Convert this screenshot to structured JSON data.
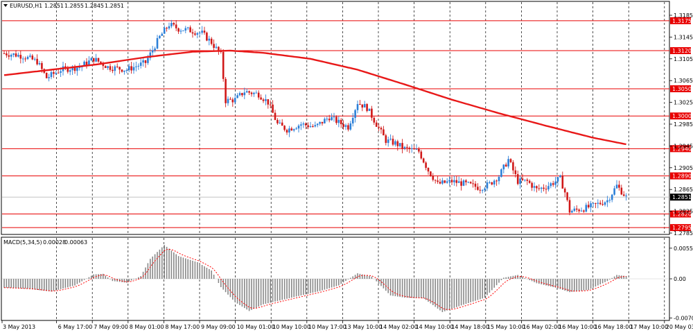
{
  "window": {
    "symbol_timeframe": "EURUSD,H1",
    "ohlc": [
      "1.2851",
      "1.2855",
      "1.2845",
      "1.2851"
    ]
  },
  "colors": {
    "bull": "#2b7fd8",
    "bear": "#d01818",
    "ma": "#e81818",
    "level": "#e80000",
    "grid": "#000000",
    "hist": "#888888",
    "signal": "#ff0000",
    "price_badge": "#000000"
  },
  "chart_data": [
    {
      "type": "candlestick",
      "title": "EURUSD,H1",
      "ylim": [
        1.2785,
        1.3185
      ],
      "y_ticks": [
        "1.3185",
        "1.3145",
        "1.3105",
        "1.3065",
        "1.3025",
        "1.2985",
        "1.2945",
        "1.2905",
        "1.2865",
        "1.2825",
        "1.2785"
      ],
      "x_ticks": [
        "3 May 2013",
        "6 May 17:00",
        "7 May 09:00",
        "8 May 01:00",
        "8 May 17:00",
        "9 May 09:00",
        "10 May 01:00",
        "10 May 10:00",
        "10 May 17:00",
        "13 May 10:00",
        "14 May 02:00",
        "14 May 10:00",
        "14 May 18:00",
        "15 May 10:00",
        "16 May 02:00",
        "16 May 10:00",
        "16 May 18:00",
        "17 May 10:00",
        "20 May 03:00"
      ],
      "levels": [
        "1.3175",
        "1.3120",
        "1.3050",
        "1.3000",
        "1.2940",
        "1.2890",
        "1.2820",
        "1.2795"
      ],
      "current_price": "1.2851",
      "close_path": [
        [
          0,
          1.3115
        ],
        [
          4,
          1.3113
        ],
        [
          8,
          1.311
        ],
        [
          14,
          1.31
        ],
        [
          18,
          1.307
        ],
        [
          24,
          1.3085
        ],
        [
          32,
          1.309
        ],
        [
          38,
          1.3105
        ],
        [
          44,
          1.309
        ],
        [
          52,
          1.3085
        ],
        [
          60,
          1.3098
        ],
        [
          66,
          1.3145
        ],
        [
          70,
          1.3168
        ],
        [
          74,
          1.316
        ],
        [
          78,
          1.3158
        ],
        [
          84,
          1.3152
        ],
        [
          88,
          1.3135
        ],
        [
          92,
          1.3112
        ],
        [
          94,
          1.3028
        ],
        [
          98,
          1.303
        ],
        [
          102,
          1.3045
        ],
        [
          108,
          1.304
        ],
        [
          112,
          1.3025
        ],
        [
          116,
          1.2985
        ],
        [
          120,
          1.2975
        ],
        [
          126,
          1.2985
        ],
        [
          132,
          1.298
        ],
        [
          138,
          1.2998
        ],
        [
          142,
          1.2988
        ],
        [
          146,
          1.298
        ],
        [
          150,
          1.3025
        ],
        [
          154,
          1.3015
        ],
        [
          158,
          1.2985
        ],
        [
          162,
          1.2955
        ],
        [
          166,
          1.295
        ],
        [
          170,
          1.294
        ],
        [
          176,
          1.2935
        ],
        [
          180,
          1.29
        ],
        [
          184,
          1.2875
        ],
        [
          190,
          1.288
        ],
        [
          196,
          1.2875
        ],
        [
          202,
          1.2868
        ],
        [
          206,
          1.2875
        ],
        [
          210,
          1.289
        ],
        [
          214,
          1.292
        ],
        [
          218,
          1.288
        ],
        [
          222,
          1.288
        ],
        [
          226,
          1.2865
        ],
        [
          230,
          1.287
        ],
        [
          236,
          1.2885
        ],
        [
          238,
          1.286
        ],
        [
          240,
          1.2825
        ],
        [
          246,
          1.283
        ],
        [
          250,
          1.2835
        ],
        [
          256,
          1.2845
        ],
        [
          260,
          1.2872
        ],
        [
          264,
          1.2851
        ]
      ],
      "ma_path": [
        [
          0,
          1.3075
        ],
        [
          20,
          1.3085
        ],
        [
          40,
          1.3095
        ],
        [
          60,
          1.3108
        ],
        [
          80,
          1.3118
        ],
        [
          96,
          1.312
        ],
        [
          110,
          1.3116
        ],
        [
          130,
          1.3105
        ],
        [
          150,
          1.3085
        ],
        [
          170,
          1.3058
        ],
        [
          190,
          1.303
        ],
        [
          210,
          1.3005
        ],
        [
          230,
          1.2982
        ],
        [
          250,
          1.296
        ],
        [
          264,
          1.2948
        ]
      ]
    },
    {
      "type": "histogram",
      "title": "MACD(5,34,5)",
      "values_header": [
        "0.00028",
        "0.00063"
      ],
      "ylim": [
        -0.0075,
        0.0075
      ],
      "y_ticks": [
        "0.00552",
        "0.00",
        "-0.00705"
      ],
      "macd_path": [
        [
          0,
          -0.0016
        ],
        [
          10,
          -0.0018
        ],
        [
          20,
          -0.0023
        ],
        [
          30,
          -0.0012
        ],
        [
          38,
          0.0008
        ],
        [
          42,
          0.0009
        ],
        [
          46,
          -0.0004
        ],
        [
          52,
          -0.0007
        ],
        [
          58,
          0.0005
        ],
        [
          62,
          0.0036
        ],
        [
          68,
          0.0061
        ],
        [
          74,
          0.0041
        ],
        [
          82,
          0.003
        ],
        [
          88,
          0.0015
        ],
        [
          92,
          -0.0015
        ],
        [
          98,
          -0.0042
        ],
        [
          104,
          -0.0058
        ],
        [
          110,
          -0.0046
        ],
        [
          118,
          -0.0038
        ],
        [
          126,
          -0.003
        ],
        [
          134,
          -0.0022
        ],
        [
          142,
          -0.0012
        ],
        [
          150,
          0.001
        ],
        [
          156,
          0.0004
        ],
        [
          164,
          -0.003
        ],
        [
          170,
          -0.0034
        ],
        [
          178,
          -0.0035
        ],
        [
          186,
          -0.006
        ],
        [
          194,
          -0.0048
        ],
        [
          204,
          -0.0034
        ],
        [
          212,
          0.0002
        ],
        [
          218,
          0.0007
        ],
        [
          226,
          -0.0008
        ],
        [
          234,
          -0.0016
        ],
        [
          240,
          -0.0024
        ],
        [
          248,
          -0.002
        ],
        [
          256,
          -0.0004
        ],
        [
          260,
          0.0007
        ],
        [
          264,
          0.0005
        ]
      ]
    }
  ]
}
